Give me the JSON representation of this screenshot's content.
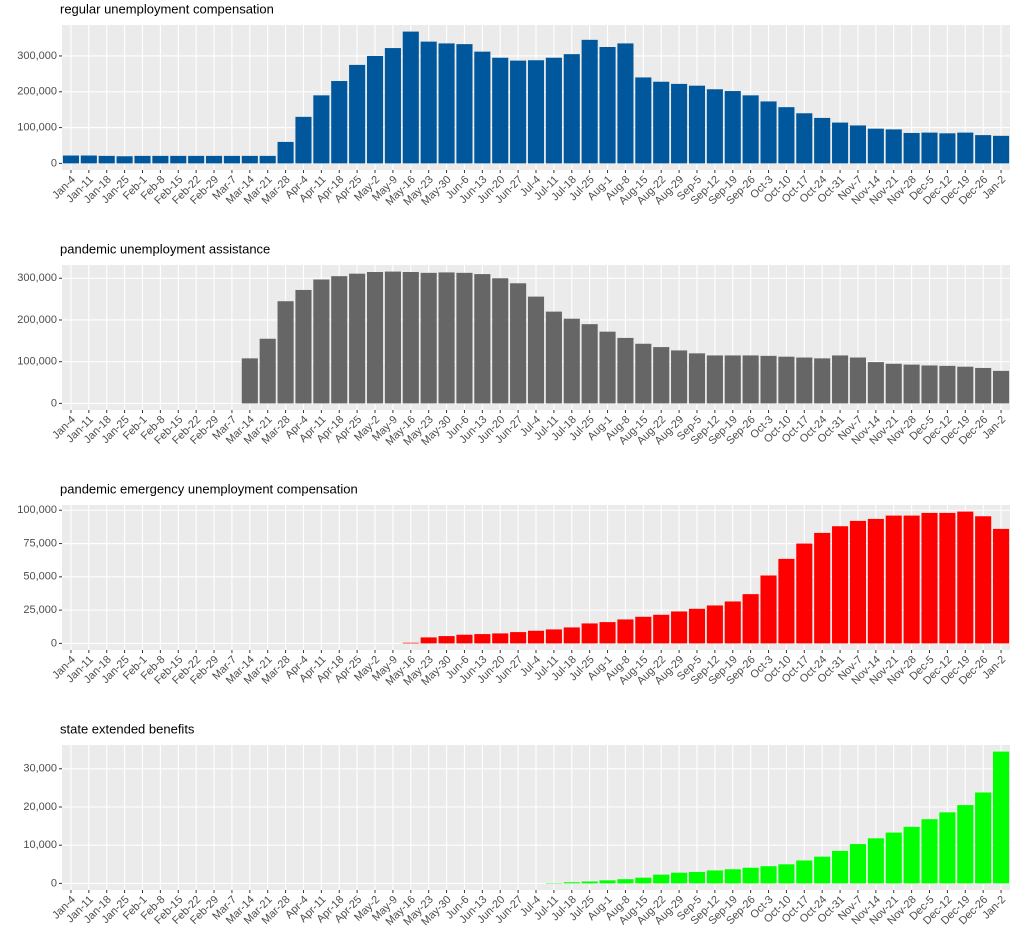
{
  "chart_data": [
    {
      "type": "bar",
      "title": "regular unemployment compensation",
      "color": "#01579b",
      "grid": true,
      "categories": [
        "Jan-4",
        "Jan-11",
        "Jan-18",
        "Jan-25",
        "Feb-1",
        "Feb-8",
        "Feb-15",
        "Feb-22",
        "Feb-29",
        "Mar-7",
        "Mar-14",
        "Mar-21",
        "Mar-28",
        "Apr-4",
        "Apr-11",
        "Apr-18",
        "Apr-25",
        "May-2",
        "May-9",
        "May-16",
        "May-23",
        "May-30",
        "Jun-6",
        "Jun-13",
        "Jun-20",
        "Jun-27",
        "Jul-4",
        "Jul-11",
        "Jul-18",
        "Jul-25",
        "Aug-1",
        "Aug-8",
        "Aug-15",
        "Aug-22",
        "Aug-29",
        "Sep-5",
        "Sep-12",
        "Sep-19",
        "Sep-26",
        "Oct-3",
        "Oct-10",
        "Oct-17",
        "Oct-24",
        "Oct-31",
        "Nov-7",
        "Nov-14",
        "Nov-21",
        "Nov-28",
        "Dec-5",
        "Dec-12",
        "Dec-19",
        "Dec-26",
        "Jan-2"
      ],
      "values": [
        22000,
        22000,
        21000,
        20000,
        21000,
        21000,
        21000,
        21000,
        21000,
        21000,
        21000,
        21000,
        60000,
        130000,
        190000,
        230000,
        275000,
        300000,
        322000,
        368000,
        340000,
        335000,
        333000,
        312000,
        295000,
        287000,
        288000,
        295000,
        305000,
        345000,
        325000,
        335000,
        240000,
        228000,
        222000,
        217000,
        207000,
        202000,
        190000,
        173000,
        157000,
        140000,
        127000,
        114000,
        106000,
        97000,
        95000,
        85000,
        86000,
        84000,
        86000,
        79000,
        77000
      ],
      "ylim": [
        -18400,
        386400
      ],
      "yticks": [
        0,
        {
          "value": 100000,
          "label": "100,000"
        },
        {
          "value": 200000,
          "label": "200,000"
        },
        {
          "value": 300000,
          "label": "300,000"
        }
      ]
    },
    {
      "type": "bar",
      "title": "pandemic unemployment assistance",
      "color": "#666666",
      "grid": true,
      "categories": [
        "Jan-4",
        "Jan-11",
        "Jan-18",
        "Jan-25",
        "Feb-1",
        "Feb-8",
        "Feb-15",
        "Feb-22",
        "Feb-29",
        "Mar-7",
        "Mar-14",
        "Mar-21",
        "Mar-28",
        "Apr-4",
        "Apr-11",
        "Apr-18",
        "Apr-25",
        "May-2",
        "May-9",
        "May-16",
        "May-23",
        "May-30",
        "Jun-6",
        "Jun-13",
        "Jun-20",
        "Jun-27",
        "Jul-4",
        "Jul-11",
        "Jul-18",
        "Jul-25",
        "Aug-1",
        "Aug-8",
        "Aug-15",
        "Aug-22",
        "Aug-29",
        "Sep-5",
        "Sep-12",
        "Sep-19",
        "Sep-26",
        "Oct-3",
        "Oct-10",
        "Oct-17",
        "Oct-24",
        "Oct-31",
        "Nov-7",
        "Nov-14",
        "Nov-21",
        "Nov-28",
        "Dec-5",
        "Dec-12",
        "Dec-19",
        "Dec-26",
        "Jan-2"
      ],
      "values": [
        0,
        0,
        0,
        0,
        0,
        0,
        0,
        0,
        0,
        0,
        108000,
        155000,
        245000,
        272000,
        297000,
        305000,
        311000,
        315000,
        316000,
        315000,
        313000,
        314000,
        313000,
        310000,
        300000,
        288000,
        256000,
        220000,
        203000,
        190000,
        172000,
        157000,
        143000,
        135000,
        127000,
        120000,
        115000,
        115000,
        115000,
        114000,
        112000,
        110000,
        108000,
        115000,
        110000,
        99000,
        95000,
        93000,
        91000,
        90000,
        88000,
        85000,
        78000
      ],
      "ylim": [
        -15800,
        331800
      ],
      "yticks": [
        0,
        {
          "value": 100000,
          "label": "100,000"
        },
        {
          "value": 200000,
          "label": "200,000"
        },
        {
          "value": 300000,
          "label": "300,000"
        }
      ]
    },
    {
      "type": "bar",
      "title": "pandemic emergency unemployment compensation",
      "color": "#ff0000",
      "grid": true,
      "categories": [
        "Jan-4",
        "Jan-11",
        "Jan-18",
        "Jan-25",
        "Feb-1",
        "Feb-8",
        "Feb-15",
        "Feb-22",
        "Feb-29",
        "Mar-7",
        "Mar-14",
        "Mar-21",
        "Mar-28",
        "Apr-4",
        "Apr-11",
        "Apr-18",
        "Apr-25",
        "May-2",
        "May-9",
        "May-16",
        "May-23",
        "May-30",
        "Jun-6",
        "Jun-13",
        "Jun-20",
        "Jun-27",
        "Jul-4",
        "Jul-11",
        "Jul-18",
        "Jul-25",
        "Aug-1",
        "Aug-8",
        "Aug-15",
        "Aug-22",
        "Aug-29",
        "Sep-5",
        "Sep-12",
        "Sep-19",
        "Sep-26",
        "Oct-3",
        "Oct-10",
        "Oct-17",
        "Oct-24",
        "Oct-31",
        "Nov-7",
        "Nov-14",
        "Nov-21",
        "Nov-28",
        "Dec-5",
        "Dec-12",
        "Dec-19",
        "Dec-26",
        "Jan-2"
      ],
      "values": [
        0,
        0,
        0,
        0,
        0,
        0,
        0,
        0,
        0,
        0,
        0,
        0,
        0,
        0,
        0,
        0,
        0,
        0,
        0,
        500,
        4500,
        5500,
        6500,
        7000,
        7500,
        8500,
        9500,
        10500,
        12000,
        15000,
        16000,
        18000,
        20000,
        21500,
        24000,
        26000,
        28500,
        31500,
        37000,
        51000,
        63500,
        75000,
        83000,
        88000,
        92000,
        93500,
        96000,
        96000,
        98000,
        98000,
        99000,
        95500,
        86000
      ],
      "ylim": [
        -4950,
        103950
      ],
      "yticks": [
        0,
        {
          "value": 25000,
          "label": "25,000"
        },
        {
          "value": 50000,
          "label": "50,000"
        },
        {
          "value": 75000,
          "label": "75,000"
        },
        {
          "value": 100000,
          "label": "100,000"
        }
      ]
    },
    {
      "type": "bar",
      "title": "state extended benefits",
      "color": "#00ff00",
      "grid": true,
      "categories": [
        "Jan-4",
        "Jan-11",
        "Jan-18",
        "Jan-25",
        "Feb-1",
        "Feb-8",
        "Feb-15",
        "Feb-22",
        "Feb-29",
        "Mar-7",
        "Mar-14",
        "Mar-21",
        "Mar-28",
        "Apr-4",
        "Apr-11",
        "Apr-18",
        "Apr-25",
        "May-2",
        "May-9",
        "May-16",
        "May-23",
        "May-30",
        "Jun-6",
        "Jun-13",
        "Jun-20",
        "Jun-27",
        "Jul-4",
        "Jul-11",
        "Jul-18",
        "Jul-25",
        "Aug-1",
        "Aug-8",
        "Aug-15",
        "Aug-22",
        "Aug-29",
        "Sep-5",
        "Sep-12",
        "Sep-19",
        "Sep-26",
        "Oct-3",
        "Oct-10",
        "Oct-17",
        "Oct-24",
        "Oct-31",
        "Nov-7",
        "Nov-14",
        "Nov-21",
        "Nov-28",
        "Dec-5",
        "Dec-12",
        "Dec-19",
        "Dec-26",
        "Jan-2"
      ],
      "values": [
        0,
        0,
        0,
        0,
        0,
        0,
        0,
        0,
        0,
        0,
        0,
        0,
        0,
        0,
        0,
        0,
        0,
        0,
        0,
        0,
        0,
        0,
        0,
        0,
        0,
        0,
        0,
        100,
        300,
        500,
        800,
        1100,
        1500,
        2300,
        2800,
        3000,
        3400,
        3700,
        4100,
        4500,
        5000,
        6000,
        7000,
        8500,
        10300,
        11800,
        13300,
        14800,
        16800,
        18600,
        20500,
        23800,
        34500
      ],
      "ylim": [
        -1725,
        36225
      ],
      "yticks": [
        0,
        {
          "value": 10000,
          "label": "10,000"
        },
        {
          "value": 20000,
          "label": "20,000"
        },
        {
          "value": 30000,
          "label": "30,000"
        }
      ]
    }
  ]
}
